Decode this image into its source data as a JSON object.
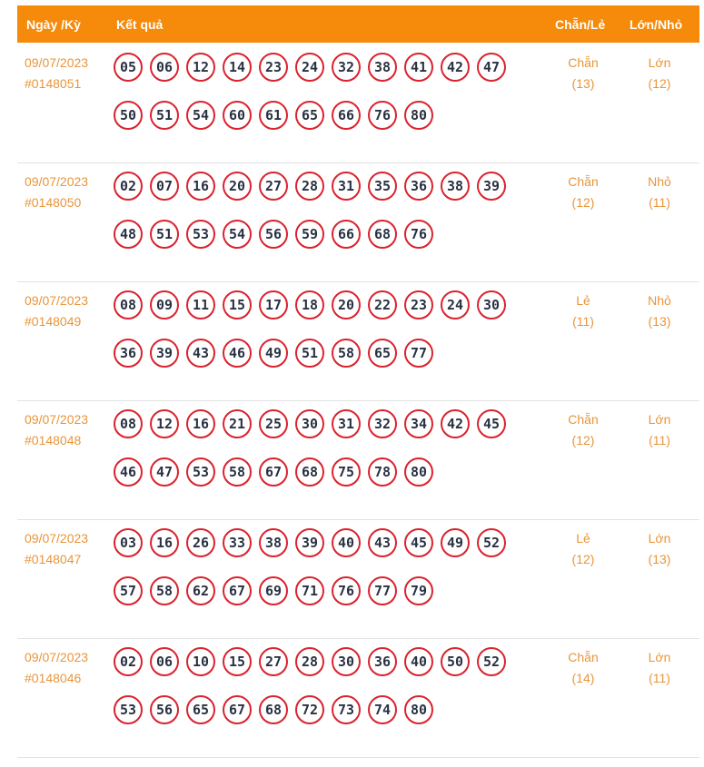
{
  "header": {
    "date_col": "Ngày /Kỳ",
    "result_col": "Kết quả",
    "parity_col": "Chẵn/Lẻ",
    "size_col": "Lớn/Nhỏ"
  },
  "rows": [
    {
      "date": "09/07/2023",
      "draw": "#0148051",
      "numbers": [
        "05",
        "06",
        "12",
        "14",
        "23",
        "24",
        "32",
        "38",
        "41",
        "42",
        "47",
        "50",
        "51",
        "54",
        "60",
        "61",
        "65",
        "66",
        "76",
        "80"
      ],
      "parity": "Chẵn",
      "parity_count": "(13)",
      "size": "Lớn",
      "size_count": "(12)"
    },
    {
      "date": "09/07/2023",
      "draw": "#0148050",
      "numbers": [
        "02",
        "07",
        "16",
        "20",
        "27",
        "28",
        "31",
        "35",
        "36",
        "38",
        "39",
        "48",
        "51",
        "53",
        "54",
        "56",
        "59",
        "66",
        "68",
        "76"
      ],
      "parity": "Chẵn",
      "parity_count": "(12)",
      "size": "Nhỏ",
      "size_count": "(11)"
    },
    {
      "date": "09/07/2023",
      "draw": "#0148049",
      "numbers": [
        "08",
        "09",
        "11",
        "15",
        "17",
        "18",
        "20",
        "22",
        "23",
        "24",
        "30",
        "36",
        "39",
        "43",
        "46",
        "49",
        "51",
        "58",
        "65",
        "77"
      ],
      "parity": "Lẻ",
      "parity_count": "(11)",
      "size": "Nhỏ",
      "size_count": "(13)"
    },
    {
      "date": "09/07/2023",
      "draw": "#0148048",
      "numbers": [
        "08",
        "12",
        "16",
        "21",
        "25",
        "30",
        "31",
        "32",
        "34",
        "42",
        "45",
        "46",
        "47",
        "53",
        "58",
        "67",
        "68",
        "75",
        "78",
        "80"
      ],
      "parity": "Chẵn",
      "parity_count": "(12)",
      "size": "Lớn",
      "size_count": "(11)"
    },
    {
      "date": "09/07/2023",
      "draw": "#0148047",
      "numbers": [
        "03",
        "16",
        "26",
        "33",
        "38",
        "39",
        "40",
        "43",
        "45",
        "49",
        "52",
        "57",
        "58",
        "62",
        "67",
        "69",
        "71",
        "76",
        "77",
        "79"
      ],
      "parity": "Lẻ",
      "parity_count": "(12)",
      "size": "Lớn",
      "size_count": "(13)"
    },
    {
      "date": "09/07/2023",
      "draw": "#0148046",
      "numbers": [
        "02",
        "06",
        "10",
        "15",
        "27",
        "28",
        "30",
        "36",
        "40",
        "50",
        "52",
        "53",
        "56",
        "65",
        "67",
        "68",
        "72",
        "73",
        "74",
        "80"
      ],
      "parity": "Chẵn",
      "parity_count": "(14)",
      "size": "Lớn",
      "size_count": "(11)"
    }
  ]
}
